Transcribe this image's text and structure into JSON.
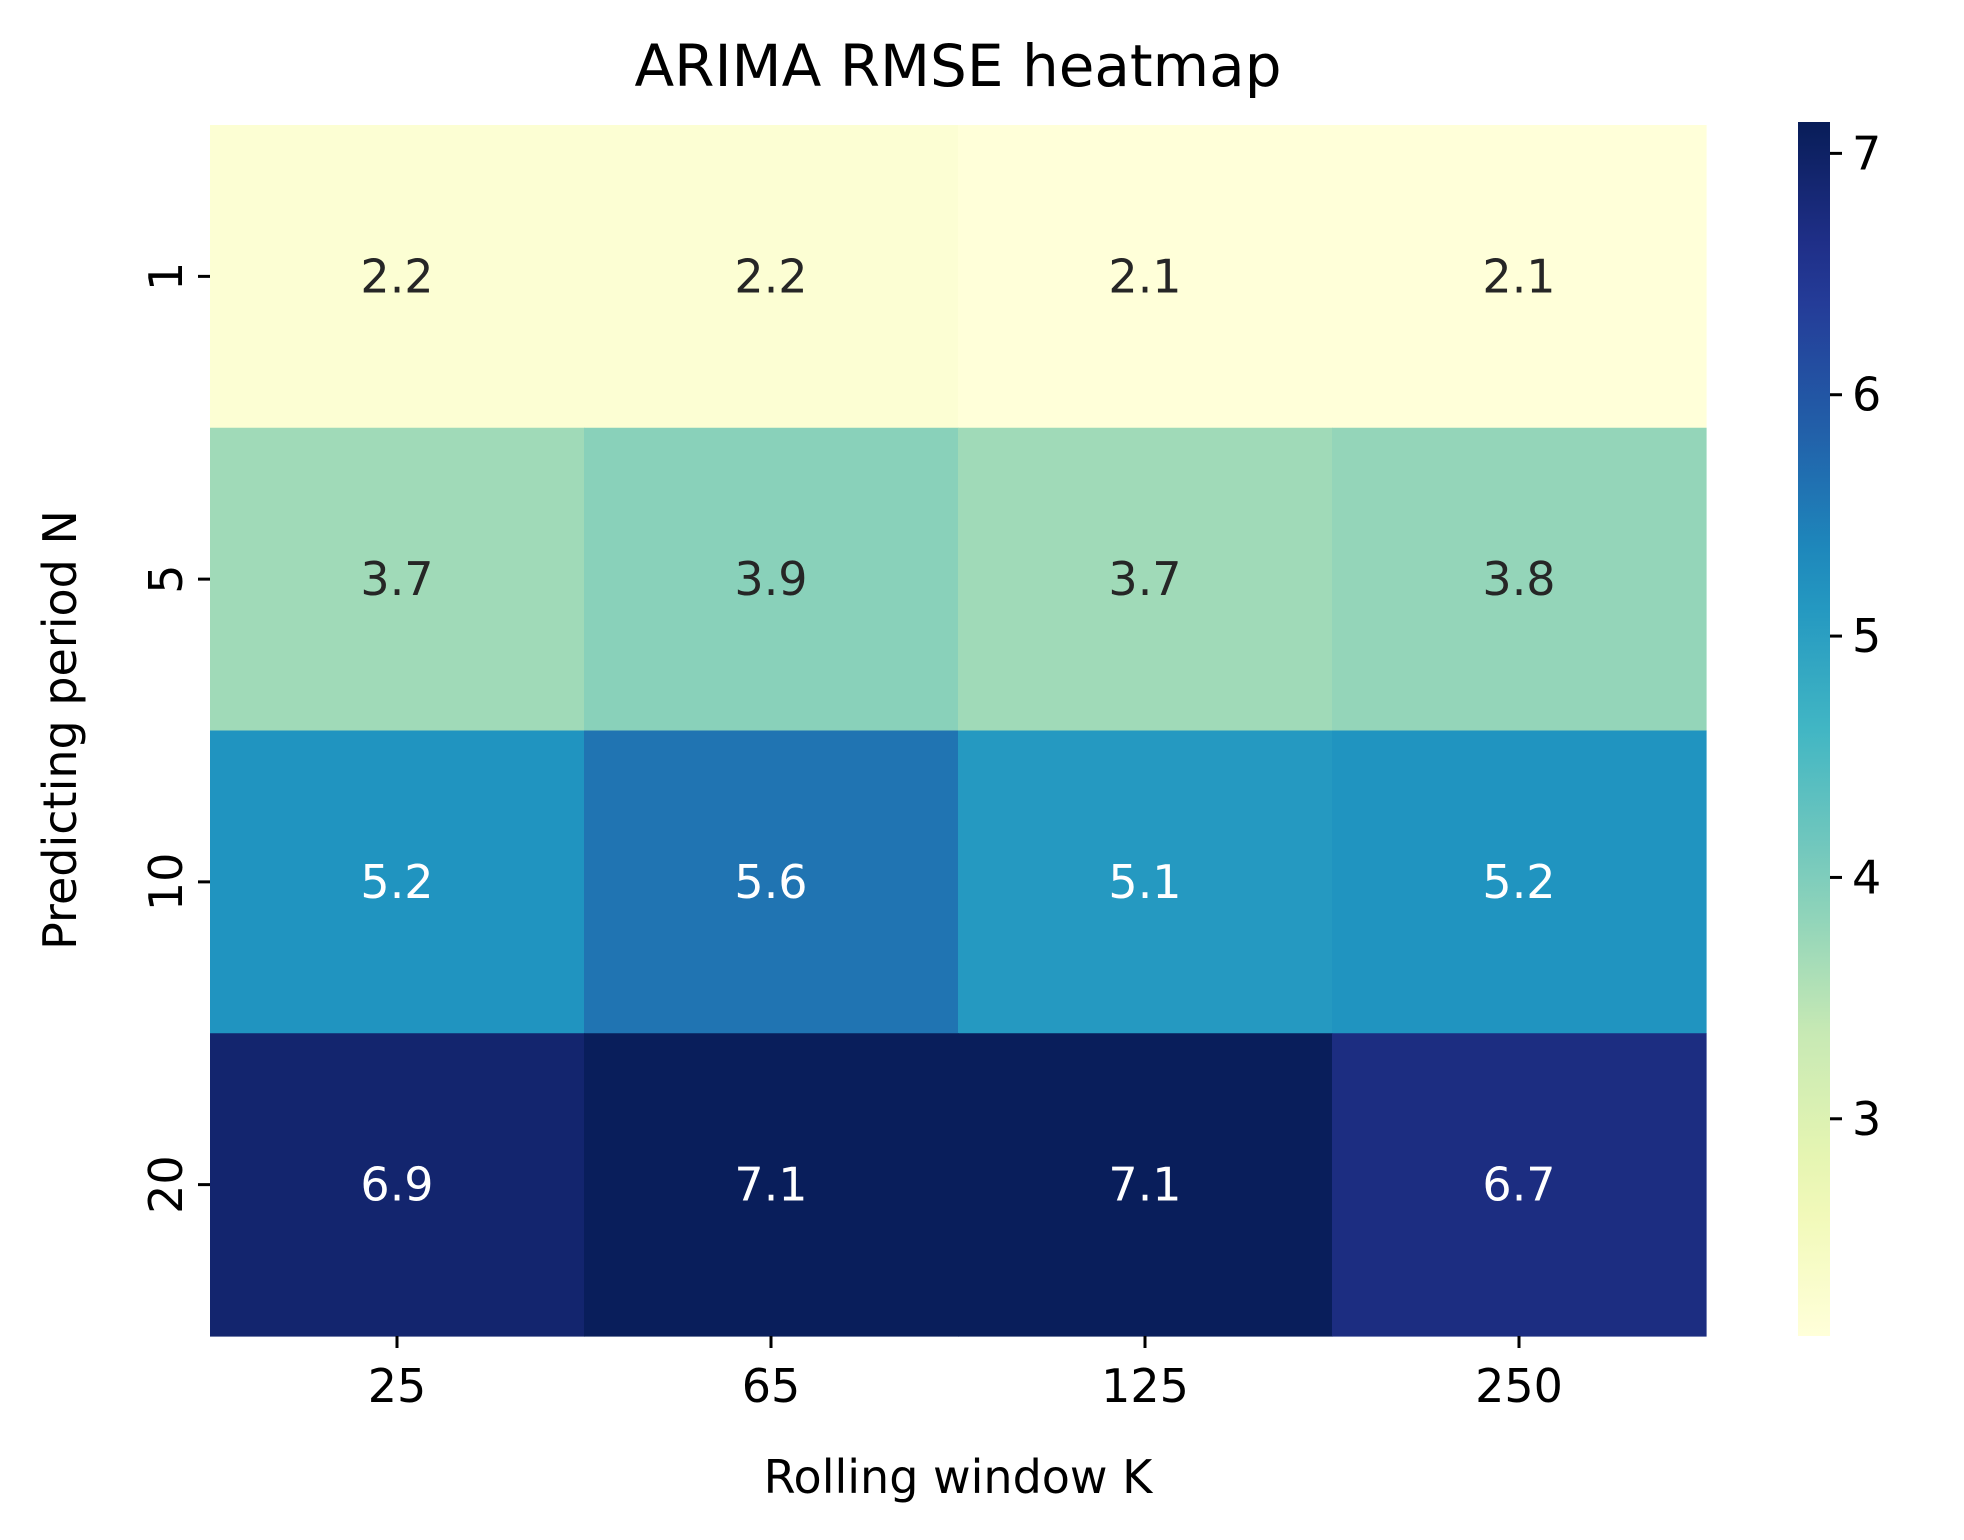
{
  "chart_data": {
    "type": "heatmap",
    "title": "ARIMA RMSE heatmap",
    "xlabel": "Rolling window K",
    "ylabel": "Predicting period N",
    "x_categories": [
      "25",
      "65",
      "125",
      "250"
    ],
    "y_categories": [
      "1",
      "5",
      "10",
      "20"
    ],
    "values": [
      [
        2.2,
        2.2,
        2.1,
        2.1
      ],
      [
        3.7,
        3.9,
        3.7,
        3.8
      ],
      [
        5.2,
        5.6,
        5.1,
        5.2
      ],
      [
        6.9,
        7.1,
        7.1,
        6.7
      ]
    ],
    "value_labels": [
      [
        "2.2",
        "2.2",
        "2.1",
        "2.1"
      ],
      [
        "3.7",
        "3.9",
        "3.7",
        "3.8"
      ],
      [
        "5.2",
        "5.6",
        "5.1",
        "5.2"
      ],
      [
        "6.9",
        "7.1",
        "7.1",
        "6.7"
      ]
    ],
    "colormap": "YlGnBu",
    "colorbar": {
      "vmin": 2.1,
      "vmax": 7.13,
      "ticks": [
        3,
        4,
        5,
        6,
        7
      ],
      "tick_labels": [
        "3",
        "4",
        "5",
        "6",
        "7"
      ]
    },
    "grid": false,
    "legend": "colorbar-right"
  }
}
